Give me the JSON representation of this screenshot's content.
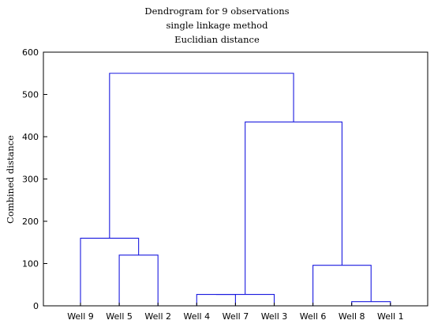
{
  "chart_data": {
    "type": "dendrogram",
    "title_lines": [
      "Dendrogram for 9 observations",
      "single linkage method",
      "Euclidian distance"
    ],
    "ylabel": "Combined distance",
    "xlabel": "",
    "ylim": [
      0,
      600
    ],
    "yticks": [
      0,
      100,
      200,
      300,
      400,
      500,
      600
    ],
    "leaves": [
      "Well 9",
      "Well 5",
      "Well 2",
      "Well 4",
      "Well 7",
      "Well 3",
      "Well 6",
      "Well 8",
      "Well 1"
    ],
    "merges": [
      {
        "left": "Well 8",
        "right": "Well 1",
        "height": 10
      },
      {
        "left": "Well 4",
        "right": "Well 7",
        "height": 27
      },
      {
        "left": "Well 6",
        "right": "Well 8 + Well 1",
        "height": 96
      },
      {
        "left": "Well 5",
        "right": "Well 2",
        "height": 120
      },
      {
        "left": "Well 9",
        "right": "Well 5 + Well 2",
        "height": 160
      },
      {
        "left": "Well 4 + Well 7",
        "right": "Well 3",
        "height": 27
      },
      {
        "left": "Well 4 + Well 7 + Well 3",
        "right": "Well 6 + Well 8 + Well 1",
        "height": 435
      },
      {
        "left": "Well 9 + Well 5 + Well 2",
        "right": "Well 4 + Well 7 + Well 3 + Well 6 + Well 8 + Well 1",
        "height": 550
      }
    ],
    "line_color": "#1a1adf",
    "grid": false
  }
}
